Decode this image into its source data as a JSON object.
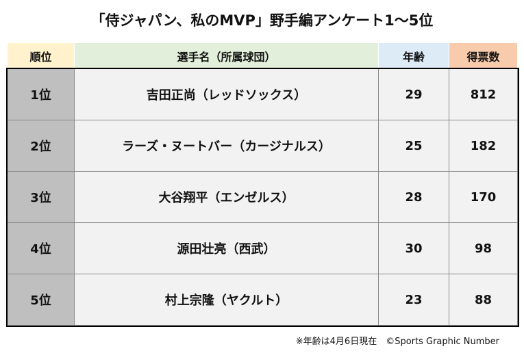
{
  "title": "「侍ジャパン、私のMVP」野手編アンケート1〜5位",
  "table": {
    "headers": [
      "順位",
      "選手名（所属球団）",
      "年齢",
      "得票数"
    ],
    "rows": [
      [
        "1位",
        "吉田正尚（レッドソックス）",
        29,
        812
      ],
      [
        "2位",
        "ラーズ・ヌートバー（カージナルス）",
        25,
        182
      ],
      [
        "3位",
        "大谷翔平（エンゼルス）",
        28,
        170
      ],
      [
        "4位",
        "源田壮亮（西武）",
        30,
        98
      ],
      [
        "5位",
        "村上宗隆（ヤクルト）",
        23,
        88
      ]
    ]
  },
  "footnote": "※年齢は4月6日現在　©Sports Graphic Number"
}
